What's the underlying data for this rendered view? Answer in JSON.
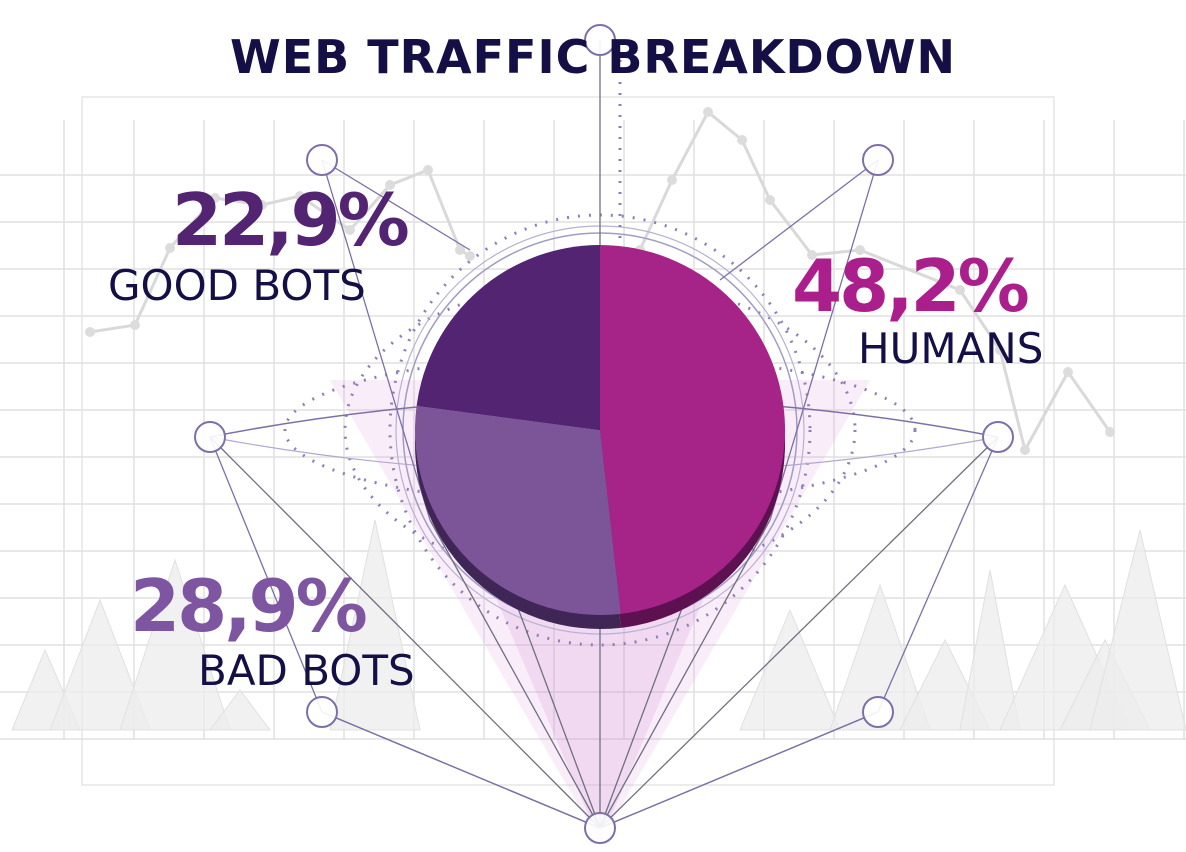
{
  "chart_data": {
    "type": "pie",
    "title": "WEB TRAFFIC BREAKDOWN",
    "slices": [
      {
        "label": "HUMANS",
        "value": 48.2,
        "display": "48,2%",
        "color": "#a62388",
        "shadow": "#5e1150"
      },
      {
        "label": "BAD BOTS",
        "value": 28.9,
        "display": "28,9%",
        "color": "#7c5598",
        "shadow": "#3f2656"
      },
      {
        "label": "GOOD BOTS",
        "value": 22.9,
        "display": "22,9%",
        "color": "#532472",
        "shadow": "#2d0f40"
      }
    ],
    "start_angle_deg": 0,
    "direction": "clockwise",
    "legend": "none"
  },
  "colors": {
    "title": "#140f45",
    "labels": "#140f45",
    "good_bots_value": "#532472",
    "humans_value": "#ab1f8d",
    "bad_bots_value": "#7d55a1"
  }
}
